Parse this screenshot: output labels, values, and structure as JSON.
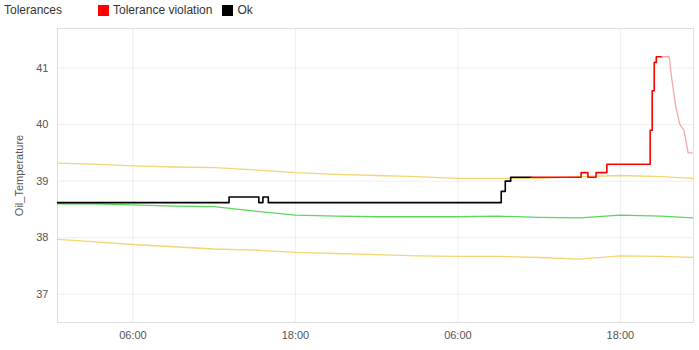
{
  "chart_data": {
    "type": "line",
    "title": "Tolerances",
    "y_label": "Oil_Temperature",
    "legend": "top",
    "grid": true,
    "xlim": [
      0.43,
      47.4
    ],
    "xticks": [
      {
        "value": 6,
        "label": "06:00"
      },
      {
        "value": 18,
        "label": "18:00"
      },
      {
        "value": 30,
        "label": "06:00"
      },
      {
        "value": 42,
        "label": "18:00"
      }
    ],
    "ylim": [
      36.5,
      41.7
    ],
    "yticks": [
      37,
      38,
      39,
      40,
      41
    ],
    "series": [
      {
        "color": "#f2d675",
        "line_style": "solid",
        "x": [
          0.43,
          3,
          6,
          9,
          12,
          15,
          18,
          21,
          24,
          27,
          30,
          33,
          36,
          39,
          42,
          45,
          47.4
        ],
        "values": [
          39.32,
          39.3,
          39.27,
          39.25,
          39.24,
          39.2,
          39.15,
          39.12,
          39.1,
          39.08,
          39.05,
          39.05,
          39.05,
          39.08,
          39.1,
          39.08,
          39.05
        ]
      },
      {
        "color": "#5cd65c",
        "line_style": "solid",
        "x": [
          0.43,
          3,
          6,
          9,
          12,
          15,
          18,
          21,
          24,
          27,
          30,
          33,
          36,
          39,
          42,
          45,
          47.4
        ],
        "values": [
          38.6,
          38.6,
          38.58,
          38.56,
          38.55,
          38.47,
          38.4,
          38.38,
          38.37,
          38.37,
          38.37,
          38.38,
          38.36,
          38.35,
          38.4,
          38.38,
          38.35
        ]
      },
      {
        "color": "#f2d675",
        "line_style": "solid",
        "x": [
          0.43,
          3,
          6,
          9,
          12,
          15,
          18,
          21,
          24,
          27,
          30,
          33,
          36,
          39,
          42,
          45,
          47.4
        ],
        "values": [
          37.97,
          37.93,
          37.88,
          37.84,
          37.8,
          37.78,
          37.74,
          37.72,
          37.7,
          37.68,
          37.67,
          37.67,
          37.65,
          37.62,
          37.68,
          37.67,
          37.65
        ]
      },
      {
        "name": "Ok",
        "color": "#000000",
        "line_style": "step",
        "x": [
          0.43,
          13.1,
          15.3,
          15.6,
          16.0,
          33.2,
          33.5,
          33.9,
          35.4
        ],
        "values": [
          38.62,
          38.72,
          38.62,
          38.72,
          38.62,
          38.82,
          39.0,
          39.07,
          39.07
        ]
      },
      {
        "name": "Tolerance violation",
        "color": "#ff0000",
        "line_style": "step",
        "x": [
          35.4,
          39.1,
          39.6,
          40.2,
          41.0,
          44.2,
          44.35,
          44.5,
          44.65,
          45.1
        ],
        "values": [
          39.07,
          39.15,
          39.07,
          39.15,
          39.3,
          39.9,
          40.6,
          41.1,
          41.2,
          41.2
        ]
      },
      {
        "color": "#f4a8a8",
        "line_style": "solid",
        "x": [
          45.1,
          45.6,
          45.8,
          46.1,
          46.4,
          46.7,
          47.0,
          47.3
        ],
        "values": [
          41.2,
          41.2,
          40.8,
          40.3,
          40.0,
          39.9,
          39.5,
          39.5
        ]
      }
    ]
  }
}
